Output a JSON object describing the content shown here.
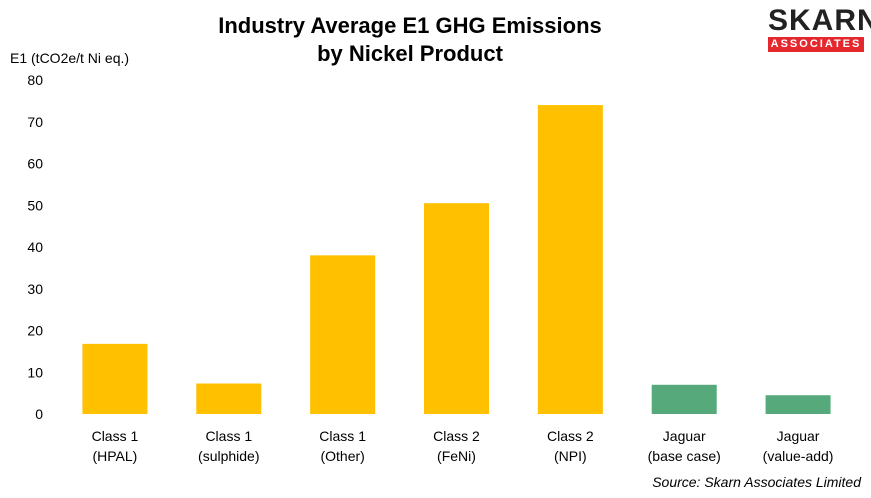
{
  "chart_data": {
    "type": "bar",
    "title_line1": "Industry Average E1 GHG Emissions",
    "title_line2": "by Nickel Product",
    "ylabel": "E1 (tCO2e/t Ni eq.)",
    "xlabel": "",
    "ylim": [
      0,
      80
    ],
    "yticks": [
      0,
      10,
      20,
      30,
      40,
      50,
      60,
      70,
      80
    ],
    "grid": false,
    "categories": [
      [
        "Class 1",
        "(HPAL)"
      ],
      [
        "Class 1",
        "(sulphide)"
      ],
      [
        "Class 1",
        "(Other)"
      ],
      [
        "Class 2",
        "(FeNi)"
      ],
      [
        "Class 2",
        "(NPI)"
      ],
      [
        "Jaguar",
        "(base case)"
      ],
      [
        "Jaguar",
        "(value-add)"
      ]
    ],
    "values": [
      16.8,
      7.3,
      38,
      50.5,
      74,
      7,
      4.5
    ],
    "bar_colors": [
      "#ffc000",
      "#ffc000",
      "#ffc000",
      "#ffc000",
      "#ffc000",
      "#55a97b",
      "#55a97b"
    ]
  },
  "logo": {
    "top": "SKARN",
    "bottom": "ASSOCIATES"
  },
  "source": "Source: Skarn Associates Limited"
}
